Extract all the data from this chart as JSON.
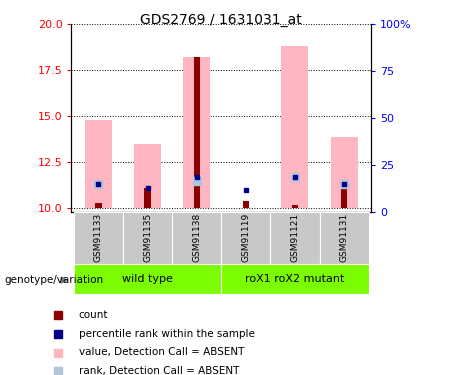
{
  "title": "GDS2769 / 1631031_at",
  "samples": [
    "GSM91133",
    "GSM91135",
    "GSM91138",
    "GSM91119",
    "GSM91121",
    "GSM91131"
  ],
  "ylim_left": [
    9.8,
    20.0
  ],
  "ylim_right": [
    0,
    100
  ],
  "yticks_left": [
    10,
    12.5,
    15,
    17.5,
    20
  ],
  "yticks_right": [
    0,
    25,
    50,
    75,
    100
  ],
  "pink_bar_top": [
    14.8,
    13.5,
    18.2,
    null,
    18.8,
    13.9
  ],
  "red_bar_top": [
    10.3,
    11.1,
    18.2,
    10.4,
    10.2,
    11.3
  ],
  "light_blue_y": [
    11.3,
    null,
    11.5,
    null,
    11.7,
    11.3
  ],
  "blue_y": [
    11.3,
    11.1,
    11.7,
    11.0,
    11.7,
    11.3
  ],
  "bar_bottom": 10,
  "pink_bar_width": 0.55,
  "red_bar_width": 0.13,
  "pink_color": "#FFB6C1",
  "red_color": "#8B0000",
  "blue_color": "#00008B",
  "light_blue_color": "#B0C4DE",
  "wt_label": "wild type",
  "rox_label": "roX1 roX2 mutant",
  "group_color": "#7CFC00",
  "sample_box_color": "#C8C8C8",
  "legend_items": [
    {
      "color": "#8B0000",
      "label": "count"
    },
    {
      "color": "#00008B",
      "label": "percentile rank within the sample"
    },
    {
      "color": "#FFB6C1",
      "label": "value, Detection Call = ABSENT"
    },
    {
      "color": "#B0C4DE",
      "label": "rank, Detection Call = ABSENT"
    }
  ]
}
